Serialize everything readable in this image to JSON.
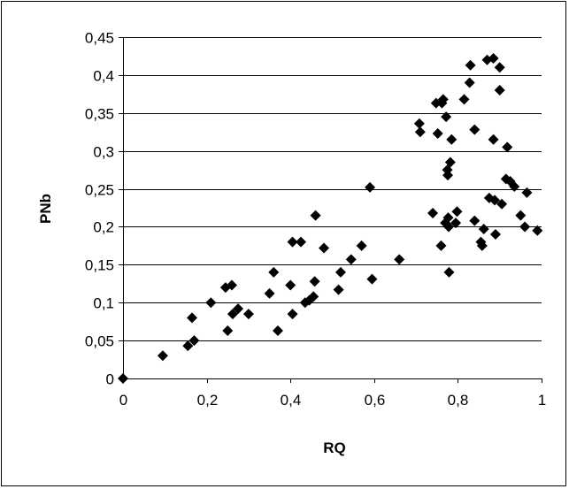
{
  "chart_data": {
    "type": "scatter",
    "title": "",
    "xlabel": "RQ",
    "ylabel": "PNb",
    "xlim": [
      0,
      1
    ],
    "ylim": [
      0,
      0.45
    ],
    "x_ticks": [
      0,
      0.2,
      0.4,
      0.6,
      0.8,
      1
    ],
    "x_tick_labels": [
      "0",
      "0,2",
      "0,4",
      "0,6",
      "0,8",
      "1"
    ],
    "y_ticks": [
      0,
      0.05,
      0.1,
      0.15,
      0.2,
      0.25,
      0.3,
      0.35,
      0.4,
      0.45
    ],
    "y_tick_labels": [
      "0",
      "0,05",
      "0,1",
      "0,15",
      "0,2",
      "0,25",
      "0,3",
      "0,35",
      "0,4",
      "0,45"
    ],
    "grid": "horizontal",
    "legend": "none",
    "marker": "diamond",
    "marker_color": "#000000",
    "series": [
      {
        "points": [
          [
            0.0,
            0.0
          ],
          [
            0.095,
            0.03
          ],
          [
            0.155,
            0.043
          ],
          [
            0.165,
            0.08
          ],
          [
            0.17,
            0.05
          ],
          [
            0.21,
            0.1
          ],
          [
            0.245,
            0.12
          ],
          [
            0.25,
            0.063
          ],
          [
            0.26,
            0.123
          ],
          [
            0.262,
            0.085
          ],
          [
            0.275,
            0.092
          ],
          [
            0.3,
            0.085
          ],
          [
            0.35,
            0.112
          ],
          [
            0.36,
            0.14
          ],
          [
            0.37,
            0.063
          ],
          [
            0.4,
            0.123
          ],
          [
            0.405,
            0.18
          ],
          [
            0.405,
            0.085
          ],
          [
            0.425,
            0.18
          ],
          [
            0.435,
            0.1
          ],
          [
            0.445,
            0.103
          ],
          [
            0.455,
            0.108
          ],
          [
            0.458,
            0.128
          ],
          [
            0.46,
            0.215
          ],
          [
            0.48,
            0.172
          ],
          [
            0.515,
            0.117
          ],
          [
            0.52,
            0.14
          ],
          [
            0.545,
            0.157
          ],
          [
            0.57,
            0.175
          ],
          [
            0.59,
            0.252
          ],
          [
            0.595,
            0.131
          ],
          [
            0.66,
            0.157
          ],
          [
            0.708,
            0.336
          ],
          [
            0.71,
            0.325
          ],
          [
            0.74,
            0.218
          ],
          [
            0.748,
            0.363
          ],
          [
            0.752,
            0.323
          ],
          [
            0.76,
            0.175
          ],
          [
            0.762,
            0.363
          ],
          [
            0.765,
            0.368
          ],
          [
            0.77,
            0.205
          ],
          [
            0.772,
            0.345
          ],
          [
            0.775,
            0.275
          ],
          [
            0.776,
            0.268
          ],
          [
            0.777,
            0.212
          ],
          [
            0.778,
            0.2
          ],
          [
            0.779,
            0.14
          ],
          [
            0.782,
            0.285
          ],
          [
            0.785,
            0.315
          ],
          [
            0.795,
            0.205
          ],
          [
            0.798,
            0.22
          ],
          [
            0.815,
            0.368
          ],
          [
            0.828,
            0.39
          ],
          [
            0.83,
            0.413
          ],
          [
            0.84,
            0.328
          ],
          [
            0.84,
            0.208
          ],
          [
            0.855,
            0.18
          ],
          [
            0.858,
            0.175
          ],
          [
            0.862,
            0.197
          ],
          [
            0.87,
            0.42
          ],
          [
            0.875,
            0.238
          ],
          [
            0.885,
            0.422
          ],
          [
            0.885,
            0.315
          ],
          [
            0.888,
            0.235
          ],
          [
            0.89,
            0.19
          ],
          [
            0.9,
            0.41
          ],
          [
            0.9,
            0.38
          ],
          [
            0.905,
            0.23
          ],
          [
            0.915,
            0.263
          ],
          [
            0.918,
            0.305
          ],
          [
            0.925,
            0.26
          ],
          [
            0.935,
            0.253
          ],
          [
            0.95,
            0.215
          ],
          [
            0.96,
            0.2
          ],
          [
            0.965,
            0.245
          ],
          [
            0.99,
            0.195
          ]
        ]
      }
    ]
  }
}
